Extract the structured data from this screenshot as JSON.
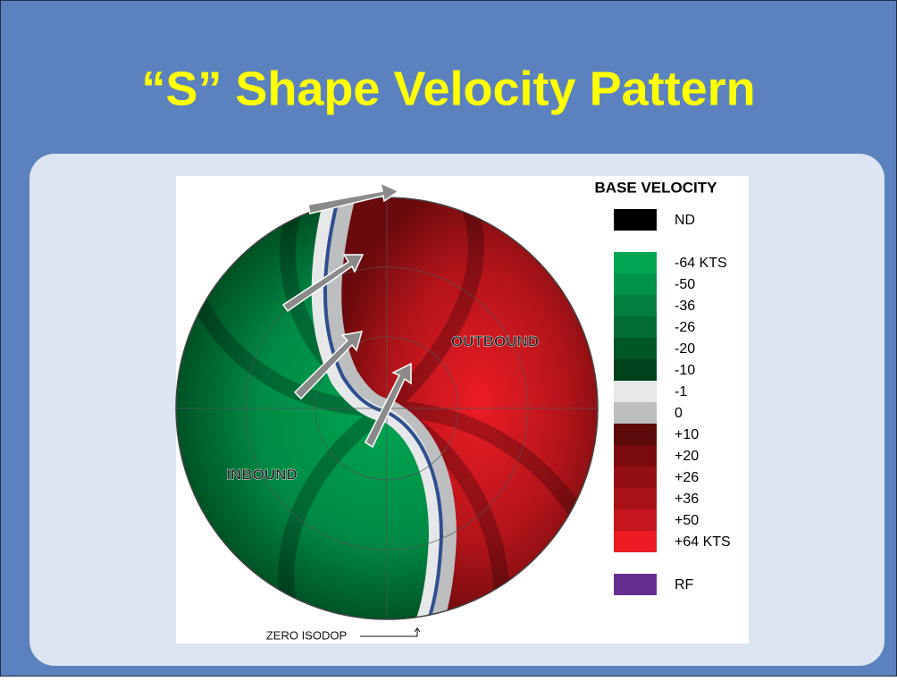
{
  "title": "“S” Shape Velocity Pattern",
  "diagram": {
    "labels": {
      "outbound": "OUTBOUND",
      "inbound": "INBOUND",
      "zero_isodop": "ZERO ISODOP"
    }
  },
  "legend": {
    "title": "BASE VELOCITY",
    "entries": [
      {
        "label": "ND",
        "color": "#000000"
      },
      {
        "color": "#ffffff"
      },
      {
        "label": "-64 KTS",
        "color": "#00a651"
      },
      {
        "label": "-50",
        "color": "#00934a"
      },
      {
        "label": "-36",
        "color": "#007f3f"
      },
      {
        "label": "-26",
        "color": "#006b33"
      },
      {
        "label": "-20",
        "color": "#005626"
      },
      {
        "label": "-10",
        "color": "#00421b"
      },
      {
        "label": "-1",
        "color": "#e6e7e8"
      },
      {
        "label": "0",
        "color": "#bcbec0"
      },
      {
        "label": "+10",
        "color": "#5c0a0a"
      },
      {
        "label": "+20",
        "color": "#7a0a0c"
      },
      {
        "label": "+26",
        "color": "#940f12"
      },
      {
        "label": "+36",
        "color": "#a91318"
      },
      {
        "label": "+50",
        "color": "#c4161c"
      },
      {
        "label": "+64 KTS",
        "color": "#ed1c24"
      },
      {
        "color": "#ffffff"
      },
      {
        "label": "RF",
        "color": "#662d91"
      }
    ]
  }
}
